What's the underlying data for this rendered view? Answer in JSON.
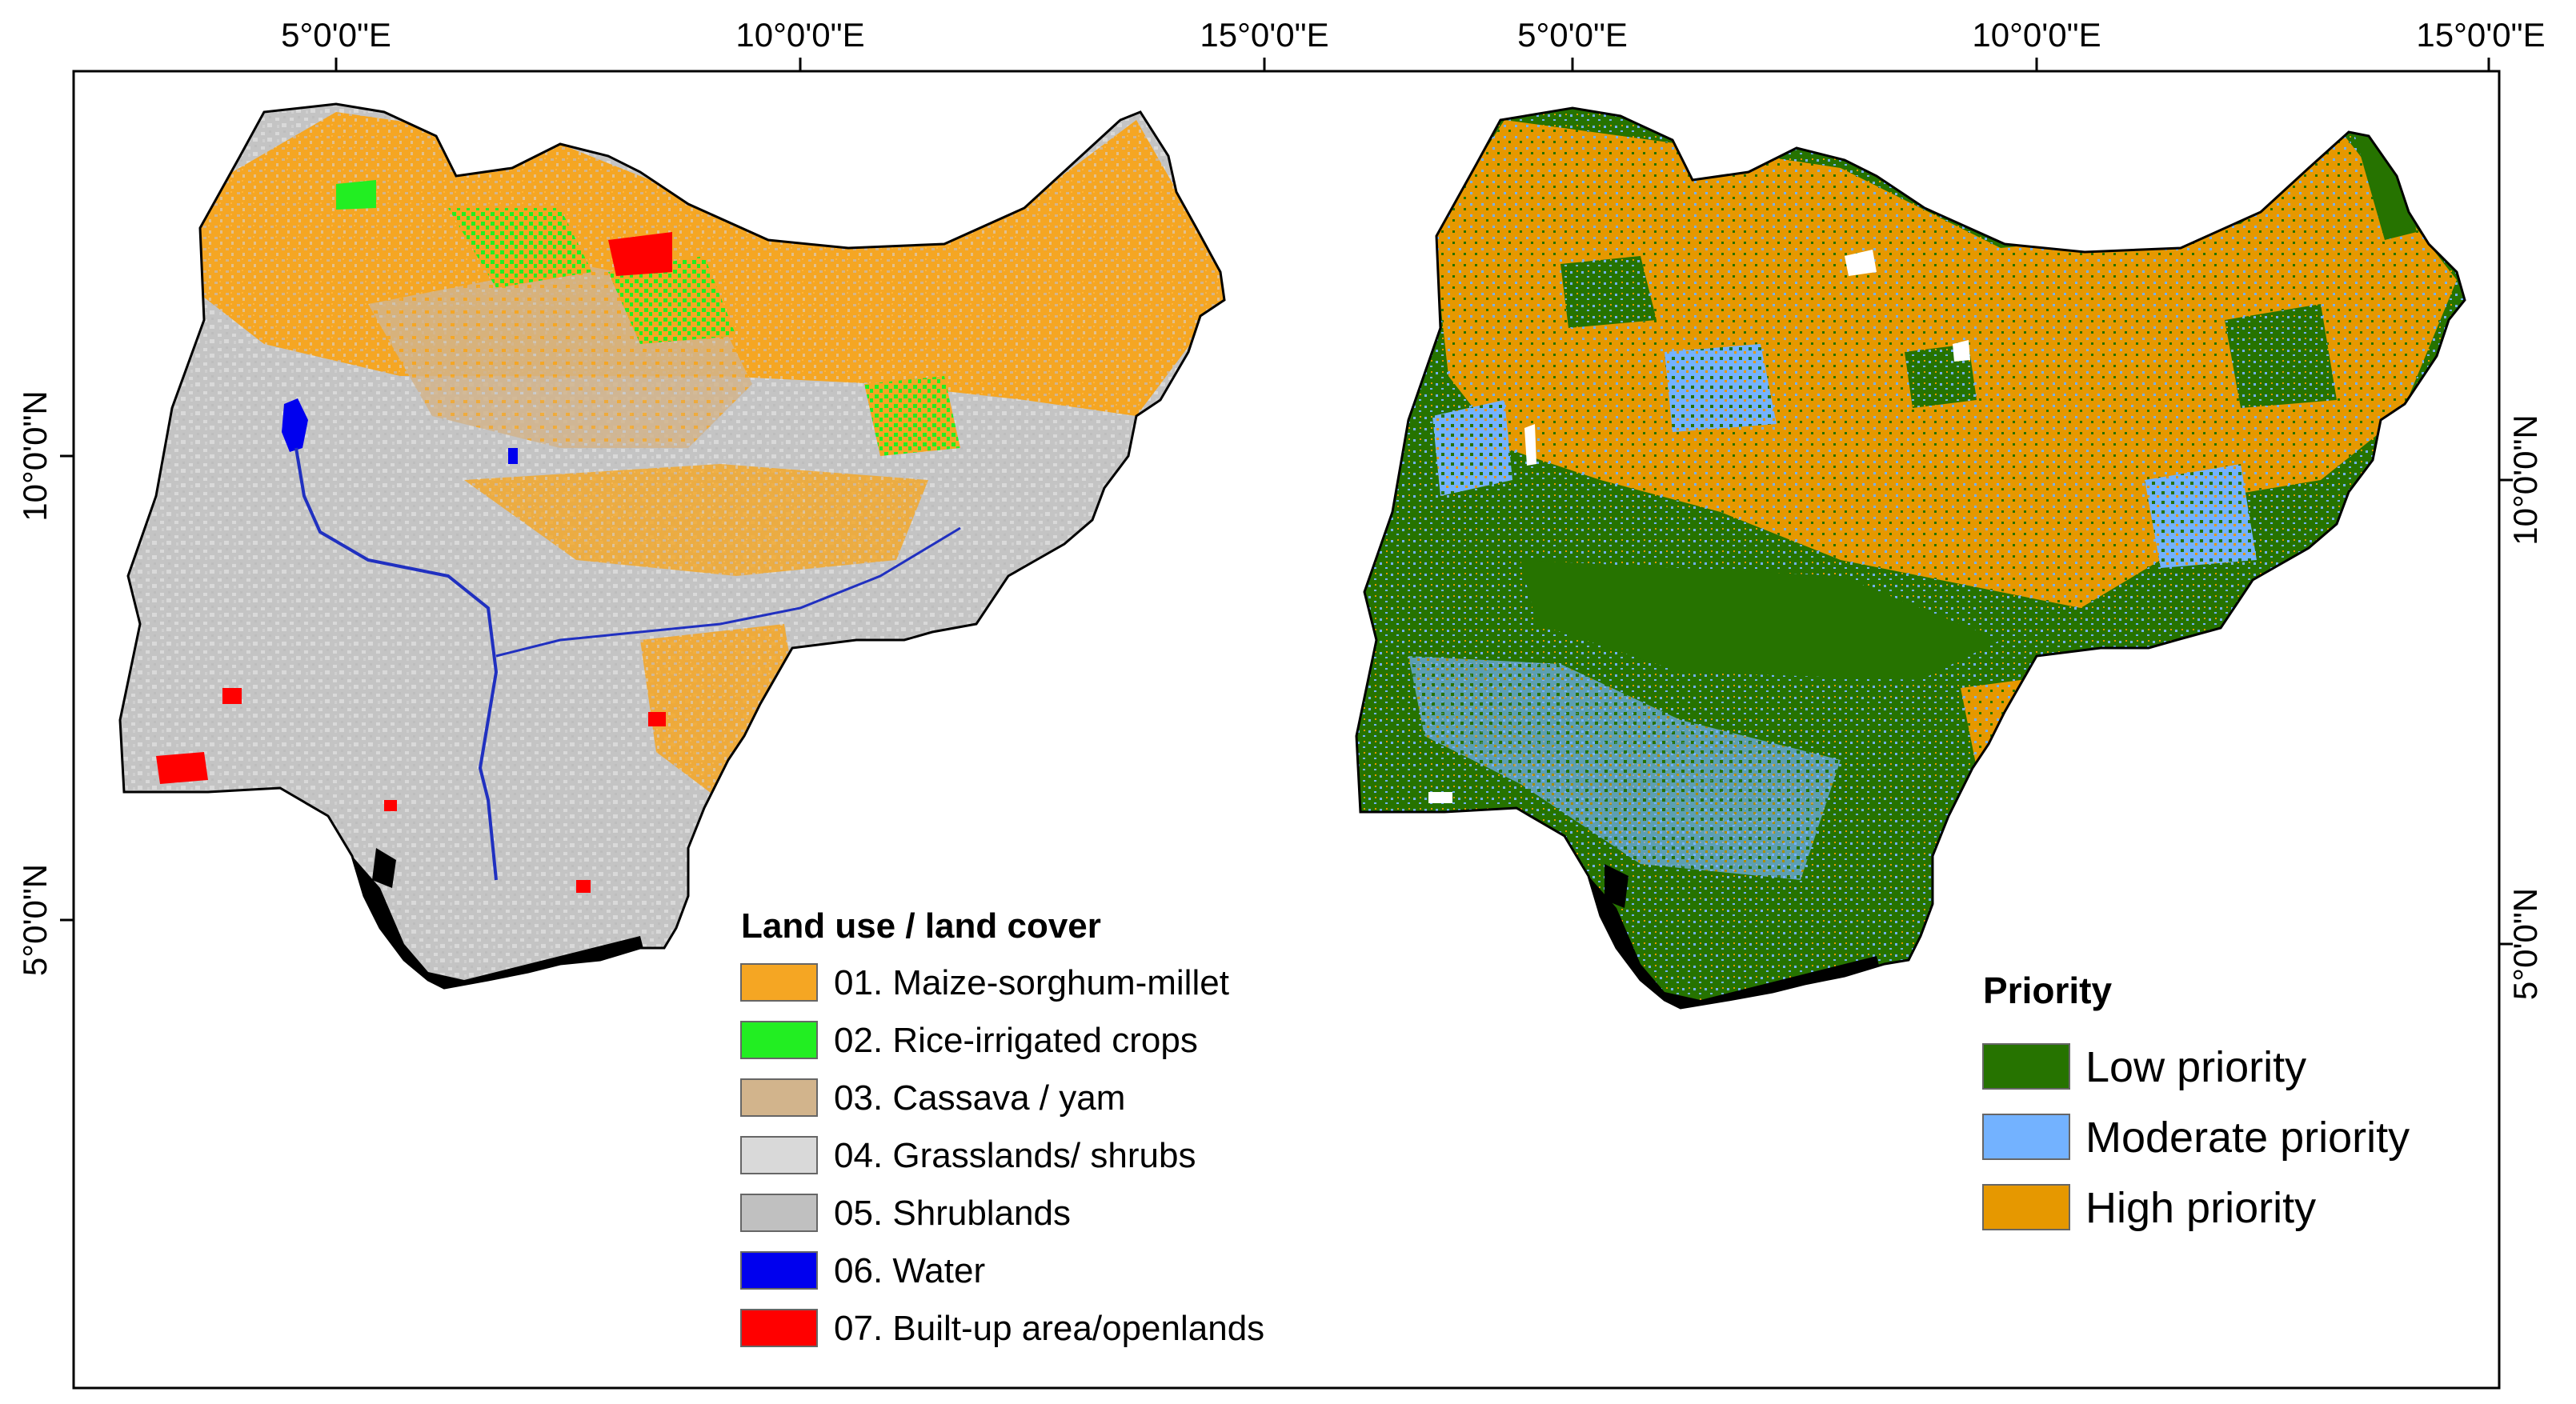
{
  "panels": [
    {
      "id": "lulc",
      "lon_ticks": [
        "5°0'0\"E",
        "10°0'0\"E",
        "15°0'0\"E"
      ],
      "lat_ticks": [
        "10°0'0\"N",
        "5°0'0\"N"
      ],
      "legend": {
        "title": "Land use / land cover",
        "items": [
          {
            "label": "01. Maize-sorghum-millet",
            "color": "#f5a623"
          },
          {
            "label": "02. Rice-irrigated crops",
            "color": "#22ee22"
          },
          {
            "label": "03. Cassava / yam",
            "color": "#d2b48c"
          },
          {
            "label": "04. Grasslands/ shrubs",
            "color": "#d9d9d9"
          },
          {
            "label": "05. Shrublands",
            "color": "#c0c0c0"
          },
          {
            "label": "06. Water",
            "color": "#0000ee"
          },
          {
            "label": "07. Built-up area/openlands",
            "color": "#ff0000"
          }
        ]
      }
    },
    {
      "id": "priority",
      "lon_ticks": [
        "5°0'0\"E",
        "10°0'0\"E",
        "15°0'0\"E"
      ],
      "lat_ticks": [
        "10°0'0\"N",
        "5°0'0\"N"
      ],
      "legend": {
        "title": "Priority",
        "items": [
          {
            "label": "Low priority",
            "color": "#267300"
          },
          {
            "label": "Moderate priority",
            "color": "#73b2ff"
          },
          {
            "label": "High priority",
            "color": "#e69800"
          }
        ]
      }
    }
  ],
  "map_colors": {
    "outline": "#000000",
    "delta": "#000000",
    "river": "#2030c0"
  }
}
